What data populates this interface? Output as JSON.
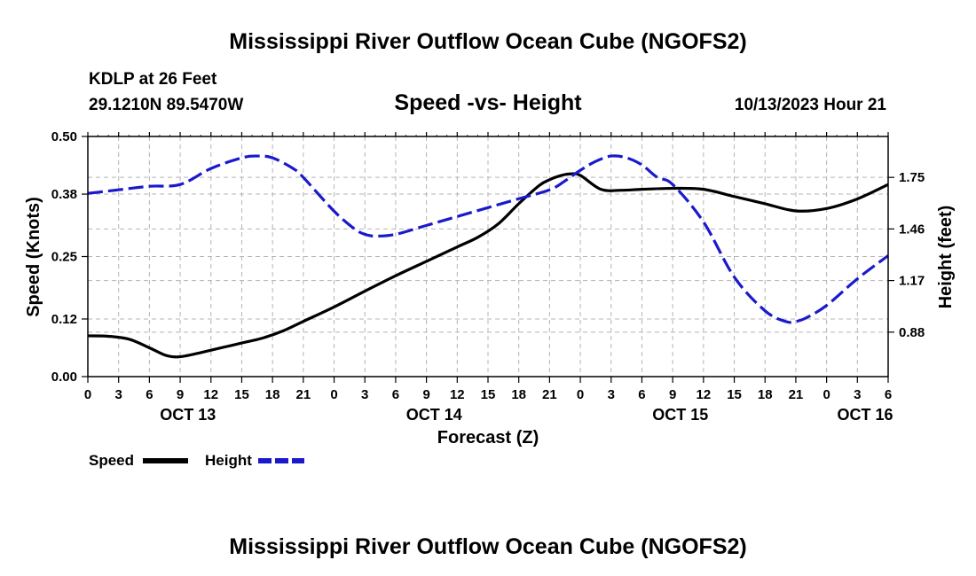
{
  "chart_data": {
    "type": "line",
    "title": "Mississippi River Outflow Ocean Cube (NGOFS2)",
    "footer_title": "Mississippi River Outflow Ocean Cube (NGOFS2)",
    "subtitle": "Speed -vs- Height",
    "station": "KDLP at 26 Feet",
    "coordinates": "29.1210N  89.5470W",
    "run_time": "10/13/2023 Hour 21",
    "xlabel": "Forecast (Z)",
    "ylabel_left": "Speed (Knots)",
    "ylabel_right": "Height (feet)",
    "x_range_hours": [
      0,
      78
    ],
    "x_tick_labels": [
      "0",
      "3",
      "6",
      "9",
      "12",
      "15",
      "18",
      "21",
      "0",
      "3",
      "6",
      "9",
      "12",
      "15",
      "18",
      "21",
      "0",
      "3",
      "6",
      "9",
      "12",
      "15",
      "18",
      "21",
      "0",
      "3",
      "6"
    ],
    "day_labels": [
      {
        "label": "OCT 13",
        "hour": 9.75
      },
      {
        "label": "OCT 14",
        "hour": 33.75
      },
      {
        "label": "OCT 15",
        "hour": 57.75
      },
      {
        "label": "OCT 16",
        "hour": 75.75
      }
    ],
    "left_axis": {
      "ylim": [
        0.0,
        0.5
      ],
      "ticks": [
        "0.00",
        "0.12",
        "0.25",
        "0.38",
        "0.50"
      ]
    },
    "right_axis": {
      "ylim": [
        0.63,
        1.98
      ],
      "ticks": [
        "0.88",
        "1.17",
        "1.46",
        "1.75"
      ]
    },
    "series": [
      {
        "name": "Speed",
        "axis": "left",
        "color": "#000000",
        "dashed": false,
        "x": [
          0,
          2,
          4,
          6,
          7.5,
          8.5,
          9.5,
          11,
          13,
          15,
          17,
          19,
          21,
          24,
          27,
          30,
          33,
          36,
          38,
          40,
          42,
          44,
          45,
          46,
          47,
          48,
          50,
          52,
          54,
          57,
          60,
          63,
          66,
          69,
          72,
          75,
          78
        ],
        "y": [
          0.085,
          0.084,
          0.078,
          0.06,
          0.045,
          0.041,
          0.043,
          0.05,
          0.06,
          0.07,
          0.08,
          0.095,
          0.115,
          0.145,
          0.178,
          0.21,
          0.24,
          0.27,
          0.29,
          0.318,
          0.36,
          0.398,
          0.41,
          0.418,
          0.422,
          0.419,
          0.39,
          0.388,
          0.39,
          0.392,
          0.39,
          0.375,
          0.36,
          0.345,
          0.35,
          0.37,
          0.4
        ]
      },
      {
        "name": "Height",
        "axis": "right",
        "color": "#1a1acc",
        "dashed": true,
        "x": [
          0,
          3,
          6,
          9,
          12,
          15,
          16.5,
          18,
          20,
          21,
          24,
          26,
          27,
          28,
          30,
          33,
          36,
          39,
          42,
          45,
          46.5,
          48,
          49.5,
          51,
          52.5,
          54,
          55.5,
          57,
          60,
          63,
          66,
          68,
          69,
          70,
          72,
          75,
          78
        ],
        "y": [
          1.66,
          1.68,
          1.7,
          1.71,
          1.8,
          1.86,
          1.87,
          1.86,
          1.8,
          1.75,
          1.56,
          1.46,
          1.43,
          1.42,
          1.43,
          1.48,
          1.53,
          1.58,
          1.63,
          1.68,
          1.73,
          1.79,
          1.84,
          1.87,
          1.86,
          1.82,
          1.75,
          1.71,
          1.5,
          1.19,
          1.0,
          0.94,
          0.94,
          0.96,
          1.03,
          1.18,
          1.31
        ]
      }
    ],
    "legend": [
      {
        "label": "Speed",
        "color": "#000000",
        "dashed": false
      },
      {
        "label": "Height",
        "color": "#1a1acc",
        "dashed": true
      }
    ]
  }
}
